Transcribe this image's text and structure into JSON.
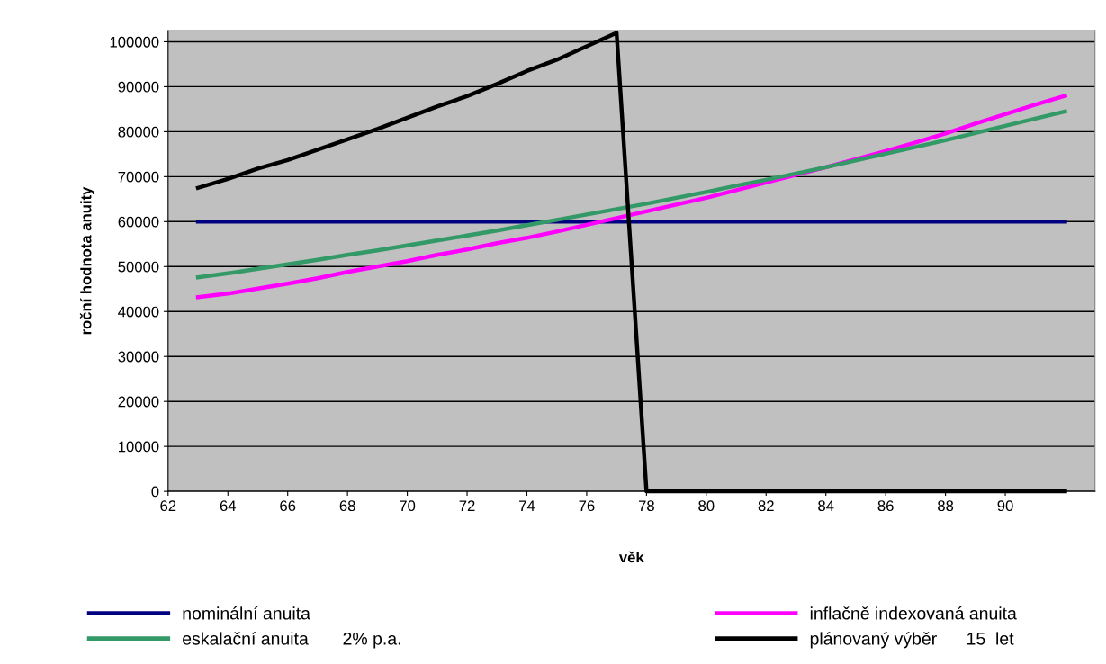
{
  "chart_data": {
    "type": "line",
    "xlabel": "věk",
    "ylabel": "roční hodnota anuity",
    "x": [
      63,
      64,
      65,
      66,
      67,
      68,
      69,
      70,
      71,
      72,
      73,
      74,
      75,
      76,
      77,
      78,
      79,
      80,
      81,
      82,
      83,
      84,
      85,
      86,
      87,
      88,
      89,
      90,
      91,
      92
    ],
    "xlim": [
      62,
      93
    ],
    "xticks": [
      62,
      64,
      66,
      68,
      70,
      72,
      74,
      76,
      78,
      80,
      82,
      84,
      86,
      88,
      90
    ],
    "ylim": [
      0,
      102500
    ],
    "yticks": [
      0,
      10000,
      20000,
      30000,
      40000,
      50000,
      60000,
      70000,
      80000,
      90000,
      100000
    ],
    "grid": "y",
    "legend": "bottom",
    "marker": "none",
    "line_style": "solid",
    "series": [
      {
        "name": "nominální anuita",
        "color": "#000080",
        "values": [
          60000,
          60000,
          60000,
          60000,
          60000,
          60000,
          60000,
          60000,
          60000,
          60000,
          60000,
          60000,
          60000,
          60000,
          60000,
          60000,
          60000,
          60000,
          60000,
          60000,
          60000,
          60000,
          60000,
          60000,
          60000,
          60000,
          60000,
          60000,
          60000,
          60000
        ]
      },
      {
        "name": "inflačně indexovaná anuita",
        "color": "#ff00ff",
        "values": [
          43200,
          44000,
          45100,
          46200,
          47400,
          48800,
          50000,
          51200,
          52600,
          53800,
          55200,
          56400,
          57800,
          59300,
          60800,
          62300,
          63800,
          65300,
          67000,
          68700,
          70400,
          72100,
          73900,
          75700,
          77600,
          79600,
          81800,
          83900,
          86000,
          88000
        ]
      },
      {
        "name": "eskalační anuita       2% p.a.",
        "color": "#339966",
        "values": [
          47600,
          48500,
          49500,
          50500,
          51500,
          52600,
          53600,
          54700,
          55800,
          56900,
          58000,
          59200,
          60400,
          61600,
          62800,
          64000,
          65300,
          66600,
          68000,
          69300,
          70700,
          72100,
          73600,
          75100,
          76600,
          78100,
          79700,
          81300,
          82900,
          84500
        ]
      },
      {
        "name": "plánovaný výběr      15  let",
        "color": "#000000",
        "values": [
          67500,
          69500,
          71800,
          73700,
          76000,
          78300,
          80600,
          83100,
          85600,
          87900,
          90600,
          93500,
          96000,
          99000,
          102000,
          0,
          0,
          0,
          0,
          0,
          0,
          0,
          0,
          0,
          0,
          0,
          0,
          0,
          0,
          0
        ]
      }
    ]
  }
}
